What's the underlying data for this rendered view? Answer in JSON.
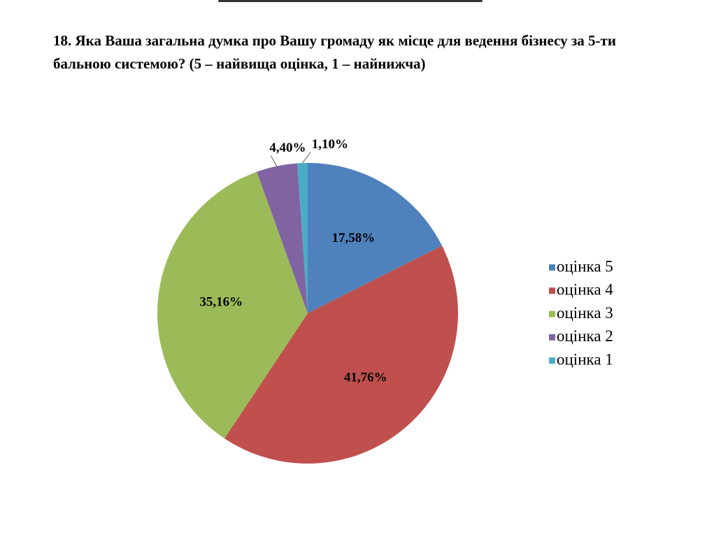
{
  "chart_data": {
    "type": "pie",
    "title": "18. Яка Ваша загальна думка про Вашу громаду як місце для ведення бізнесу за 5-ти бальною системою? (5 – найвища оцінка, 1 – найнижча)",
    "categories": [
      "оцінка 5",
      "оцінка 4",
      "оцінка 3",
      "оцінка 2",
      "оцінка 1"
    ],
    "values": [
      17.58,
      41.76,
      35.16,
      4.4,
      1.1
    ],
    "value_labels": [
      "17,58%",
      "41,76%",
      "35,16%",
      "4,40%",
      "1,10%"
    ],
    "colors": [
      "#4f81bd",
      "#c0504d",
      "#9bbb59",
      "#8064a2",
      "#4bacc6"
    ],
    "legend": "right"
  }
}
